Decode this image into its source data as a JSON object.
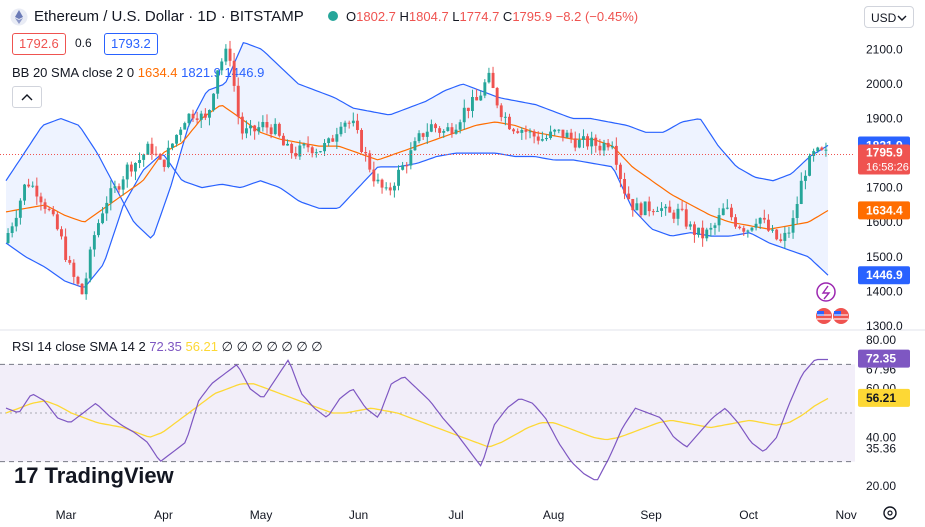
{
  "header": {
    "title": "Ethereum / U.S. Dollar · 1D · BITSTAMP",
    "o_label": "O",
    "o_value": "1802.7",
    "h_label": "H",
    "h_value": "1804.7",
    "l_label": "L",
    "l_value": "1774.7",
    "c_label": "C",
    "c_value": "1795.9",
    "change": "−8.2 (−0.45%)",
    "bid": "1792.6",
    "spread": "0.6",
    "ask": "1793.2",
    "currency": "USD"
  },
  "indicators": {
    "bb_label": "BB 20 SMA close 2 0",
    "bb_basis": "1634.4",
    "bb_upper": "1821.9",
    "bb_lower": "1446.9",
    "rsi_label": "RSI 14 close SMA 14 2",
    "rsi_value": "72.35",
    "rsi_sma": "56.21",
    "rsi_na": "∅ ∅ ∅ ∅ ∅ ∅ ∅"
  },
  "price_axis": {
    "ticks": [
      "2100.0",
      "2000.0",
      "1900.0",
      "1800.0",
      "1700.0",
      "1600.0",
      "1500.0",
      "1400.0",
      "1300.0"
    ],
    "labels": {
      "upper": "1821.9",
      "price": "1795.9",
      "countdown": "16:58:26",
      "basis": "1634.4",
      "lower": "1446.9"
    }
  },
  "rsi_axis": {
    "ticks": [
      "80.00",
      "67.96",
      "60.00",
      "40.00",
      "35.36",
      "20.00"
    ],
    "labels": {
      "rsi": "72.35",
      "sma": "56.21"
    }
  },
  "time_axis": [
    "Mar",
    "Apr",
    "May",
    "Jun",
    "Jul",
    "Aug",
    "Sep",
    "Oct",
    "Nov"
  ],
  "brand": "TradingView",
  "colors": {
    "up": "#26a69a",
    "down": "#ef5350",
    "basis": "#ff6d00",
    "bands": "#2962ff",
    "rsi": "#7e57c2",
    "rsi_sma": "#fdd835"
  },
  "chart_data": {
    "type": "candlestick",
    "symbol": "ETH/USD",
    "interval": "1D",
    "ylim": [
      1300,
      2150
    ],
    "x": [
      "Mar",
      "Apr",
      "May",
      "Jun",
      "Jul",
      "Aug",
      "Sep",
      "Oct",
      "Nov"
    ],
    "price_path": [
      1540,
      1620,
      1720,
      1690,
      1630,
      1560,
      1450,
      1390,
      1560,
      1660,
      1700,
      1760,
      1780,
      1820,
      1760,
      1830,
      1900,
      1920,
      1890,
      2050,
      2100,
      1860,
      1860,
      1880,
      1870,
      1810,
      1800,
      1820,
      1810,
      1830,
      1900,
      1880,
      1800,
      1720,
      1680,
      1740,
      1790,
      1850,
      1880,
      1860,
      1880,
      1930,
      1950,
      2020,
      1930,
      1880,
      1870,
      1850,
      1840,
      1860,
      1850,
      1830,
      1830,
      1820,
      1840,
      1700,
      1640,
      1640,
      1650,
      1620,
      1630,
      1580,
      1560,
      1580,
      1640,
      1600,
      1580,
      1620,
      1570,
      1540,
      1590,
      1740,
      1800,
      1796
    ],
    "bb_upper_path": [
      1720,
      1800,
      1880,
      1900,
      1880,
      1800,
      1700,
      1600,
      1550,
      1700,
      1880,
      1980,
      2000,
      2120,
      2100,
      2050,
      2000,
      1980,
      1960,
      1930,
      1920,
      1910,
      1930,
      1950,
      1980,
      2000,
      1980,
      1960,
      1950,
      1940,
      1920,
      1900,
      1900,
      1890,
      1880,
      1860,
      1860,
      1890,
      1900,
      1820,
      1760,
      1730,
      1720,
      1740,
      1790,
      1822
    ],
    "bb_lower_path": [
      1540,
      1500,
      1470,
      1430,
      1410,
      1480,
      1650,
      1750,
      1800,
      1720,
      1700,
      1710,
      1700,
      1720,
      1700,
      1660,
      1640,
      1640,
      1700,
      1760,
      1760,
      1770,
      1790,
      1800,
      1800,
      1800,
      1790,
      1790,
      1780,
      1780,
      1770,
      1760,
      1640,
      1580,
      1560,
      1570,
      1560,
      1560,
      1570,
      1540,
      1520,
      1500,
      1447
    ],
    "bb_basis_path": [
      1630,
      1640,
      1650,
      1620,
      1600,
      1640,
      1680,
      1720,
      1800,
      1830,
      1900,
      1940,
      1900,
      1860,
      1840,
      1830,
      1820,
      1820,
      1800,
      1780,
      1800,
      1820,
      1840,
      1860,
      1880,
      1890,
      1880,
      1860,
      1850,
      1840,
      1840,
      1820,
      1760,
      1720,
      1680,
      1650,
      1620,
      1600,
      1590,
      1580,
      1590,
      1600,
      1634
    ],
    "last": {
      "open": 1802.7,
      "high": 1804.7,
      "low": 1774.7,
      "close": 1795.9,
      "change": -8.2,
      "change_pct": -0.45
    },
    "bollinger": {
      "upper": 1821.9,
      "basis": 1634.4,
      "lower": 1446.9
    },
    "rsi": {
      "ylim": [
        20,
        80
      ],
      "levels": [
        70,
        30
      ],
      "value": 72.35,
      "sma": 56.21,
      "path": [
        52,
        50,
        58,
        55,
        48,
        46,
        50,
        54,
        49,
        45,
        42,
        38,
        30,
        34,
        38,
        55,
        62,
        66,
        70,
        60,
        56,
        64,
        72,
        58,
        52,
        48,
        56,
        60,
        52,
        48,
        62,
        65,
        60,
        55,
        48,
        42,
        35,
        28,
        45,
        52,
        56,
        54,
        48,
        38,
        30,
        25,
        22,
        32,
        44,
        52,
        50,
        48,
        40,
        36,
        42,
        48,
        52,
        46,
        38,
        34,
        40,
        54,
        66,
        72,
        72
      ],
      "sma_path": [
        50,
        52,
        54,
        55,
        53,
        50,
        48,
        46,
        45,
        44,
        42,
        40,
        42,
        46,
        50,
        54,
        58,
        60,
        62,
        62,
        60,
        58,
        56,
        54,
        52,
        50,
        50,
        51,
        52,
        51,
        50,
        48,
        46,
        44,
        42,
        40,
        38,
        36,
        38,
        41,
        44,
        46,
        46,
        44,
        42,
        40,
        39,
        40,
        42,
        44,
        46,
        47,
        46,
        45,
        44,
        45,
        46,
        47,
        46,
        45,
        46,
        49,
        53,
        56
      ]
    }
  }
}
